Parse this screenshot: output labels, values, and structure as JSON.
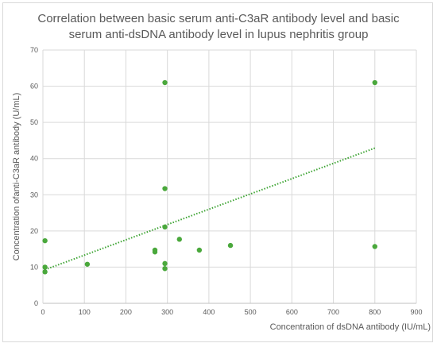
{
  "chart_data": {
    "type": "scatter",
    "title_lines": [
      "Correlation between basic serum anti-C3aR antibody level and basic",
      "serum anti-dsDNA antibody level in lupus nephritis group"
    ],
    "xlabel": "Concentration of dsDNA antibody (IU/mL)",
    "ylabel": "Concentration ofanti-C3aR  antibody (U/mL)",
    "xlim": [
      0,
      900
    ],
    "ylim": [
      0,
      70
    ],
    "x_ticks": [
      0,
      100,
      200,
      300,
      400,
      500,
      600,
      700,
      800,
      900
    ],
    "y_ticks": [
      0,
      10,
      20,
      30,
      40,
      50,
      60,
      70
    ],
    "grid": true,
    "legend": "none",
    "marker_color": "#4aa83c",
    "trendline_color": "#3fa535",
    "series": [
      {
        "points": [
          {
            "x": 5,
            "y": 17.3
          },
          {
            "x": 5,
            "y": 10.0
          },
          {
            "x": 5,
            "y": 8.7
          },
          {
            "x": 107,
            "y": 10.8
          },
          {
            "x": 270,
            "y": 14.7
          },
          {
            "x": 270,
            "y": 14.2
          },
          {
            "x": 294,
            "y": 61.0
          },
          {
            "x": 294,
            "y": 31.7
          },
          {
            "x": 294,
            "y": 21.1
          },
          {
            "x": 294,
            "y": 11.0
          },
          {
            "x": 294,
            "y": 9.6
          },
          {
            "x": 329,
            "y": 17.7
          },
          {
            "x": 377,
            "y": 14.7
          },
          {
            "x": 452,
            "y": 16.0
          },
          {
            "x": 800,
            "y": 61.0
          },
          {
            "x": 800,
            "y": 15.7
          }
        ],
        "trendline": {
          "type": "linear",
          "x": [
            5,
            800
          ],
          "y": [
            9.3,
            42.9
          ]
        }
      }
    ]
  }
}
